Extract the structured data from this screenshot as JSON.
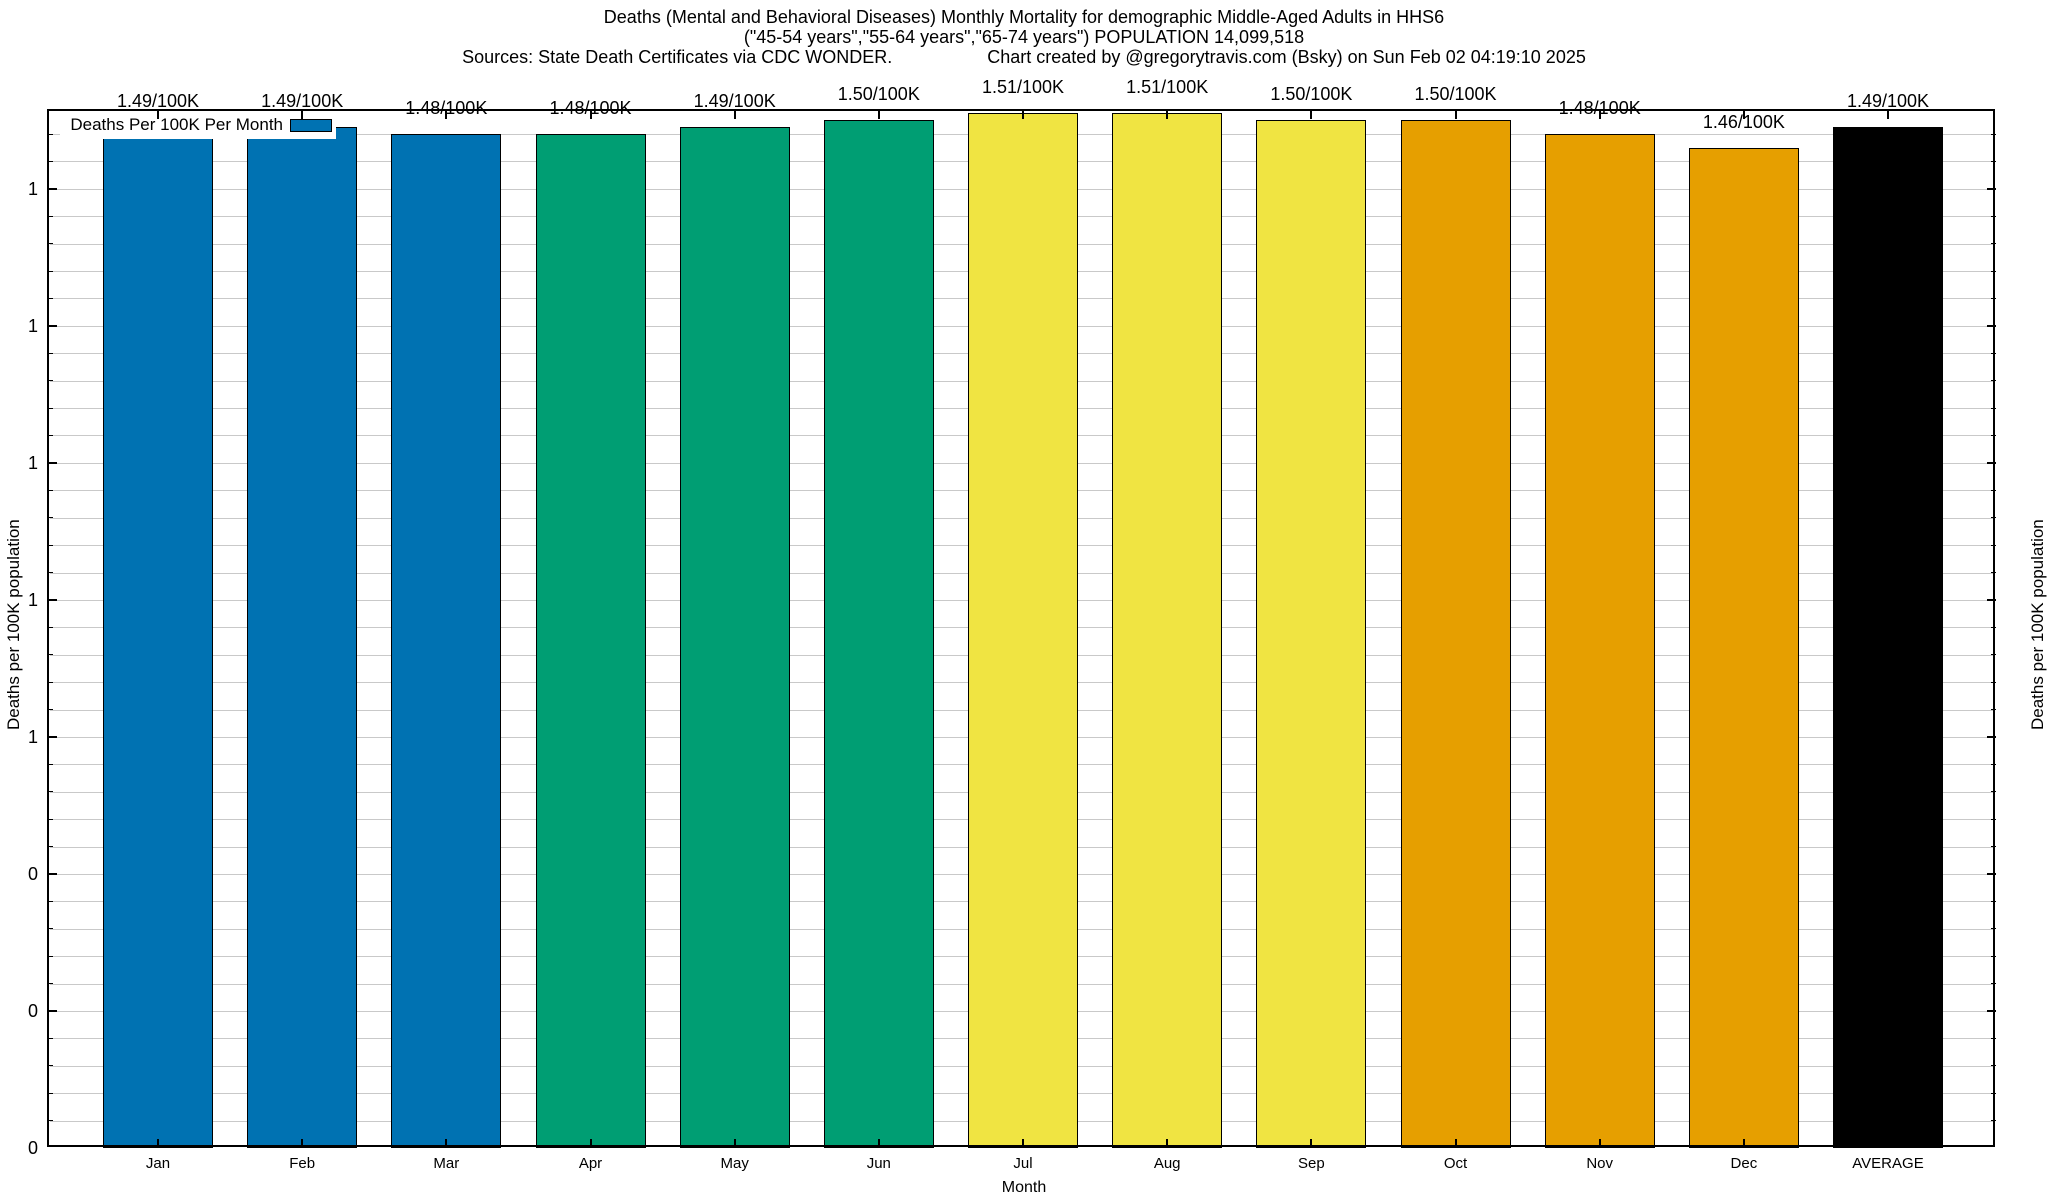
{
  "page": {
    "background": "#ffffff"
  },
  "title": {
    "line1": "Deaths (Mental and Behavioral Diseases) Monthly Mortality for demographic Middle-Aged Adults in HHS6",
    "line2": "(\"45-54 years\",\"55-64 years\",\"65-74 years\") POPULATION 14,099,518",
    "line3_sources": "Sources: State Death Certificates via CDC WONDER.",
    "line3_credit": "Chart created by @gregorytravis.com (Bsky) on Sun Feb 02 04:19:10 2025"
  },
  "legend": {
    "label": "Deaths Per 100K Per Month",
    "swatch_color": "#0072B2"
  },
  "axes": {
    "x_label": "Month",
    "y_left_label": "Deaths per 100K population",
    "y_right_label": "Deaths per 100K population"
  },
  "chart_data": {
    "type": "bar",
    "title": "Deaths (Mental and Behavioral Diseases) Monthly Mortality for demographic Middle-Aged Adults in HHS6",
    "subtitle": "(\"45-54 years\",\"55-64 years\",\"65-74 years\") POPULATION 14,099,518",
    "categories": [
      "Jan",
      "Feb",
      "Mar",
      "Apr",
      "May",
      "Jun",
      "Jul",
      "Aug",
      "Sep",
      "Oct",
      "Nov",
      "Dec",
      "AVERAGE"
    ],
    "values": [
      1.49,
      1.49,
      1.48,
      1.48,
      1.49,
      1.5,
      1.51,
      1.51,
      1.5,
      1.5,
      1.48,
      1.46,
      1.49
    ],
    "bar_labels": [
      "1.49/100K",
      "1.49/100K",
      "1.48/100K",
      "1.48/100K",
      "1.49/100K",
      "1.50/100K",
      "1.51/100K",
      "1.51/100K",
      "1.50/100K",
      "1.50/100K",
      "1.48/100K",
      "1.46/100K",
      "1.49/100K"
    ],
    "bar_colors": [
      "#0072B2",
      "#0072B2",
      "#0072B2",
      "#009E73",
      "#009E73",
      "#009E73",
      "#F0E442",
      "#F0E442",
      "#F0E442",
      "#E69F00",
      "#E69F00",
      "#E69F00",
      "#000000"
    ],
    "color_groups": {
      "Jan-Mar": "#0072B2",
      "Apr-Jun": "#009E73",
      "Jul-Sep": "#F0E442",
      "Oct-Dec": "#E69F00",
      "AVERAGE": "#000000"
    },
    "xlabel": "Month",
    "ylabel": "Deaths per 100K population",
    "ylim": [
      0,
      1.515
    ],
    "y_major_ticks": [
      {
        "value": 0.0,
        "label": "0"
      },
      {
        "value": 0.2,
        "label": "0"
      },
      {
        "value": 0.4,
        "label": "0"
      },
      {
        "value": 0.6,
        "label": "1"
      },
      {
        "value": 0.8,
        "label": "1"
      },
      {
        "value": 1.0,
        "label": "1"
      },
      {
        "value": 1.2,
        "label": "1"
      },
      {
        "value": 1.4,
        "label": "1"
      }
    ],
    "y_minor_step": 0.04,
    "grid": "horizontal",
    "grid_color": "#c9c9c9",
    "legend_position": "top-left-inside"
  }
}
